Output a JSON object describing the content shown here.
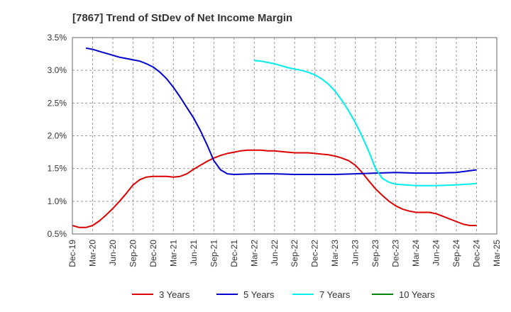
{
  "chart_data": {
    "type": "line",
    "title": "[7867]  Trend of StDev of Net Income Margin",
    "xlabel": "",
    "ylabel": "",
    "ylim": [
      0.5,
      3.5
    ],
    "y_ticks": [
      "0.5%",
      "1.0%",
      "1.5%",
      "2.0%",
      "2.5%",
      "3.0%",
      "3.5%"
    ],
    "y_tick_values": [
      0.5,
      1.0,
      1.5,
      2.0,
      2.5,
      3.0,
      3.5
    ],
    "x_ticks": [
      "Dec-19",
      "Mar-20",
      "Jun-20",
      "Sep-20",
      "Dec-20",
      "Mar-21",
      "Jun-21",
      "Sep-21",
      "Dec-21",
      "Mar-22",
      "Jun-22",
      "Sep-22",
      "Dec-22",
      "Mar-23",
      "Jun-23",
      "Sep-23",
      "Dec-23",
      "Mar-24",
      "Jun-24",
      "Sep-24",
      "Dec-24",
      "Mar-25"
    ],
    "grid": true,
    "legend_position": "bottom",
    "series": [
      {
        "name": "3 Years",
        "color": "#dd0000",
        "points": [
          [
            "Dec-19",
            0.63
          ],
          [
            "Jan-20",
            0.6
          ],
          [
            "Feb-20",
            0.6
          ],
          [
            "Mar-20",
            0.63
          ],
          [
            "Apr-20",
            0.7
          ],
          [
            "May-20",
            0.79
          ],
          [
            "Jun-20",
            0.89
          ],
          [
            "Jul-20",
            1.0
          ],
          [
            "Aug-20",
            1.12
          ],
          [
            "Sep-20",
            1.25
          ],
          [
            "Oct-20",
            1.33
          ],
          [
            "Nov-20",
            1.37
          ],
          [
            "Dec-20",
            1.38
          ],
          [
            "Jan-21",
            1.38
          ],
          [
            "Feb-21",
            1.38
          ],
          [
            "Mar-21",
            1.37
          ],
          [
            "Apr-21",
            1.38
          ],
          [
            "May-21",
            1.42
          ],
          [
            "Jun-21",
            1.49
          ],
          [
            "Jul-21",
            1.55
          ],
          [
            "Aug-21",
            1.61
          ],
          [
            "Sep-21",
            1.66
          ],
          [
            "Oct-21",
            1.7
          ],
          [
            "Nov-21",
            1.73
          ],
          [
            "Dec-21",
            1.75
          ],
          [
            "Jan-22",
            1.77
          ],
          [
            "Feb-22",
            1.78
          ],
          [
            "Mar-22",
            1.78
          ],
          [
            "Apr-22",
            1.78
          ],
          [
            "May-22",
            1.77
          ],
          [
            "Jun-22",
            1.77
          ],
          [
            "Jul-22",
            1.76
          ],
          [
            "Aug-22",
            1.75
          ],
          [
            "Sep-22",
            1.74
          ],
          [
            "Oct-22",
            1.74
          ],
          [
            "Nov-22",
            1.74
          ],
          [
            "Dec-22",
            1.73
          ],
          [
            "Jan-23",
            1.72
          ],
          [
            "Feb-23",
            1.71
          ],
          [
            "Mar-23",
            1.69
          ],
          [
            "Apr-23",
            1.66
          ],
          [
            "May-23",
            1.62
          ],
          [
            "Jun-23",
            1.55
          ],
          [
            "Jul-23",
            1.44
          ],
          [
            "Aug-23",
            1.31
          ],
          [
            "Sep-23",
            1.19
          ],
          [
            "Oct-23",
            1.09
          ],
          [
            "Nov-23",
            1.0
          ],
          [
            "Dec-23",
            0.93
          ],
          [
            "Jan-24",
            0.88
          ],
          [
            "Feb-24",
            0.85
          ],
          [
            "Mar-24",
            0.83
          ],
          [
            "Apr-24",
            0.83
          ],
          [
            "May-24",
            0.83
          ],
          [
            "Jun-24",
            0.81
          ],
          [
            "Jul-24",
            0.77
          ],
          [
            "Aug-24",
            0.73
          ],
          [
            "Sep-24",
            0.69
          ],
          [
            "Oct-24",
            0.65
          ],
          [
            "Nov-24",
            0.63
          ],
          [
            "Dec-24",
            0.63
          ]
        ]
      },
      {
        "name": "5 Years",
        "color": "#0000cc",
        "points": [
          [
            "Feb-20",
            3.34
          ],
          [
            "Mar-20",
            3.32
          ],
          [
            "Apr-20",
            3.29
          ],
          [
            "May-20",
            3.26
          ],
          [
            "Jun-20",
            3.23
          ],
          [
            "Jul-20",
            3.2
          ],
          [
            "Aug-20",
            3.18
          ],
          [
            "Sep-20",
            3.16
          ],
          [
            "Oct-20",
            3.14
          ],
          [
            "Nov-20",
            3.1
          ],
          [
            "Dec-20",
            3.05
          ],
          [
            "Jan-21",
            2.97
          ],
          [
            "Feb-21",
            2.87
          ],
          [
            "Mar-21",
            2.74
          ],
          [
            "Apr-21",
            2.59
          ],
          [
            "May-21",
            2.43
          ],
          [
            "Jun-21",
            2.27
          ],
          [
            "Jul-21",
            2.08
          ],
          [
            "Aug-21",
            1.86
          ],
          [
            "Sep-21",
            1.62
          ],
          [
            "Oct-21",
            1.48
          ],
          [
            "Nov-21",
            1.42
          ],
          [
            "Dec-21",
            1.41
          ],
          [
            "Mar-22",
            1.42
          ],
          [
            "Jun-22",
            1.42
          ],
          [
            "Sep-22",
            1.41
          ],
          [
            "Dec-22",
            1.41
          ],
          [
            "Mar-23",
            1.41
          ],
          [
            "Jun-23",
            1.42
          ],
          [
            "Sep-23",
            1.43
          ],
          [
            "Dec-23",
            1.44
          ],
          [
            "Mar-24",
            1.43
          ],
          [
            "Jun-24",
            1.43
          ],
          [
            "Sep-24",
            1.44
          ],
          [
            "Dec-24",
            1.48
          ]
        ]
      },
      {
        "name": "7 Years",
        "color": "#00eeee",
        "points": [
          [
            "Mar-22",
            3.15
          ],
          [
            "Apr-22",
            3.14
          ],
          [
            "May-22",
            3.12
          ],
          [
            "Jun-22",
            3.1
          ],
          [
            "Jul-22",
            3.07
          ],
          [
            "Aug-22",
            3.04
          ],
          [
            "Sep-22",
            3.02
          ],
          [
            "Oct-22",
            3.0
          ],
          [
            "Nov-22",
            2.97
          ],
          [
            "Dec-22",
            2.93
          ],
          [
            "Jan-23",
            2.87
          ],
          [
            "Feb-23",
            2.79
          ],
          [
            "Mar-23",
            2.68
          ],
          [
            "Apr-23",
            2.54
          ],
          [
            "May-23",
            2.38
          ],
          [
            "Jun-23",
            2.2
          ],
          [
            "Jul-23",
            1.99
          ],
          [
            "Aug-23",
            1.76
          ],
          [
            "Sep-23",
            1.5
          ],
          [
            "Oct-23",
            1.35
          ],
          [
            "Nov-23",
            1.29
          ],
          [
            "Dec-23",
            1.26
          ],
          [
            "Mar-24",
            1.24
          ],
          [
            "Jun-24",
            1.24
          ],
          [
            "Sep-24",
            1.25
          ],
          [
            "Dec-24",
            1.27
          ]
        ]
      },
      {
        "name": "10 Years",
        "color": "#008800",
        "points": []
      }
    ]
  }
}
